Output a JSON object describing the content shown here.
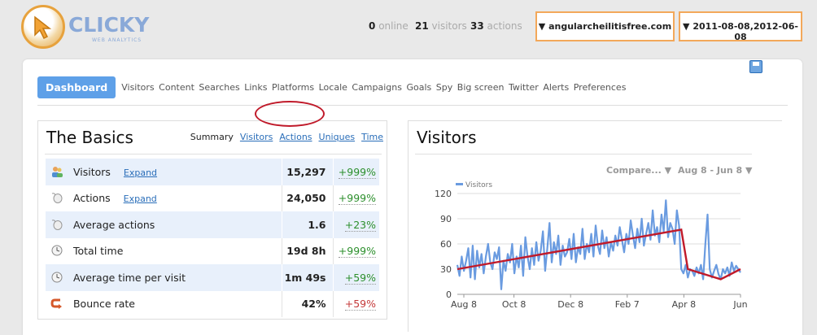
{
  "brand": {
    "name": "CLICKY",
    "tagline": "WEB ANALYTICS"
  },
  "header": {
    "online_count": "0",
    "online_label": "online",
    "visitors_count": "21",
    "visitors_label": "visitors",
    "actions_count": "33",
    "actions_label": "actions",
    "site_select": "▼ angularcheilitisfree.com",
    "date_select": "▼ 2011-08-08,2012-06-08"
  },
  "nav": {
    "active": "Dashboard",
    "items": [
      "Visitors",
      "Content",
      "Searches",
      "Links",
      "Platforms",
      "Locale",
      "Campaigns",
      "Goals",
      "Spy",
      "Big screen",
      "Twitter",
      "Alerts",
      "Preferences"
    ]
  },
  "basics": {
    "title": "The Basics",
    "tabs": {
      "summary": "Summary",
      "visitors": "Visitors",
      "actions": "Actions",
      "uniques": "Uniques",
      "time": "Time"
    },
    "expand_label": "Expand",
    "rows": [
      {
        "icon": "visitors-icon",
        "label": "Visitors",
        "value": "15,297",
        "change": "+999%",
        "dir": "pos"
      },
      {
        "icon": "mouse-icon",
        "label": "Actions",
        "value": "24,050",
        "change": "+999%",
        "dir": "pos"
      },
      {
        "icon": "mouse-icon",
        "label": "Average actions",
        "value": "1.6",
        "change": "+23%",
        "dir": "pos"
      },
      {
        "icon": "clock-icon",
        "label": "Total time",
        "value": "19d 8h",
        "change": "+999%",
        "dir": "pos"
      },
      {
        "icon": "clock-icon",
        "label": "Average time per visit",
        "value": "1m 49s",
        "change": "+59%",
        "dir": "pos"
      },
      {
        "icon": "bounce-icon",
        "label": "Bounce rate",
        "value": "42%",
        "change": "+59%",
        "dir": "neg"
      }
    ]
  },
  "visitors_panel": {
    "title": "Visitors",
    "compare_label": "Compare... ▼",
    "range_label": "Aug 8 - Jun 8 ▼"
  },
  "chart_data": {
    "type": "line",
    "series": [
      {
        "name": "Visitors",
        "values": [
          35,
          22,
          45,
          28,
          40,
          55,
          20,
          58,
          18,
          52,
          32,
          48,
          25,
          45,
          60,
          38,
          30,
          50,
          42,
          56,
          6,
          40,
          28,
          48,
          38,
          60,
          25,
          45,
          32,
          58,
          22,
          68,
          45,
          30,
          55,
          35,
          62,
          40,
          52,
          75,
          28,
          55,
          85,
          38,
          62,
          48,
          70,
          35,
          58,
          45,
          50,
          66,
          42,
          72,
          38,
          56,
          48,
          78,
          42,
          60,
          50,
          72,
          45,
          82,
          58,
          48,
          76,
          55,
          68,
          45,
          62,
          52,
          70,
          58,
          80,
          65,
          50,
          72,
          60,
          88,
          70,
          55,
          78,
          62,
          90,
          58,
          72,
          85,
          65,
          100,
          70,
          80,
          62,
          95,
          75,
          112,
          68,
          85,
          78,
          60,
          100,
          82,
          30,
          25,
          35,
          20,
          30,
          28,
          22,
          32,
          25,
          35,
          18,
          60,
          95,
          30,
          20,
          28,
          35,
          24,
          18,
          30,
          25,
          32,
          22,
          38,
          28,
          34,
          30,
          26
        ]
      }
    ],
    "trend_annotation": [
      [
        0,
        30
      ],
      [
        102,
        77
      ],
      [
        105,
        30
      ],
      [
        120,
        18
      ],
      [
        129,
        30
      ]
    ],
    "ylim": [
      0,
      120
    ],
    "y_ticks": [
      "0",
      "30",
      "60",
      "90",
      "120"
    ],
    "x_ticks": [
      "Aug 8",
      "Oct 8",
      "Dec 8",
      "Feb 7",
      "Apr 8",
      "Jun"
    ],
    "grid": true,
    "legend": "top-left",
    "colors": {
      "line": "#6a9be0",
      "trend": "#c01a2a"
    }
  },
  "colors": {
    "accent": "#5ea0e8",
    "select_border": "#f3a85a",
    "highlight": "#c01a2a"
  }
}
